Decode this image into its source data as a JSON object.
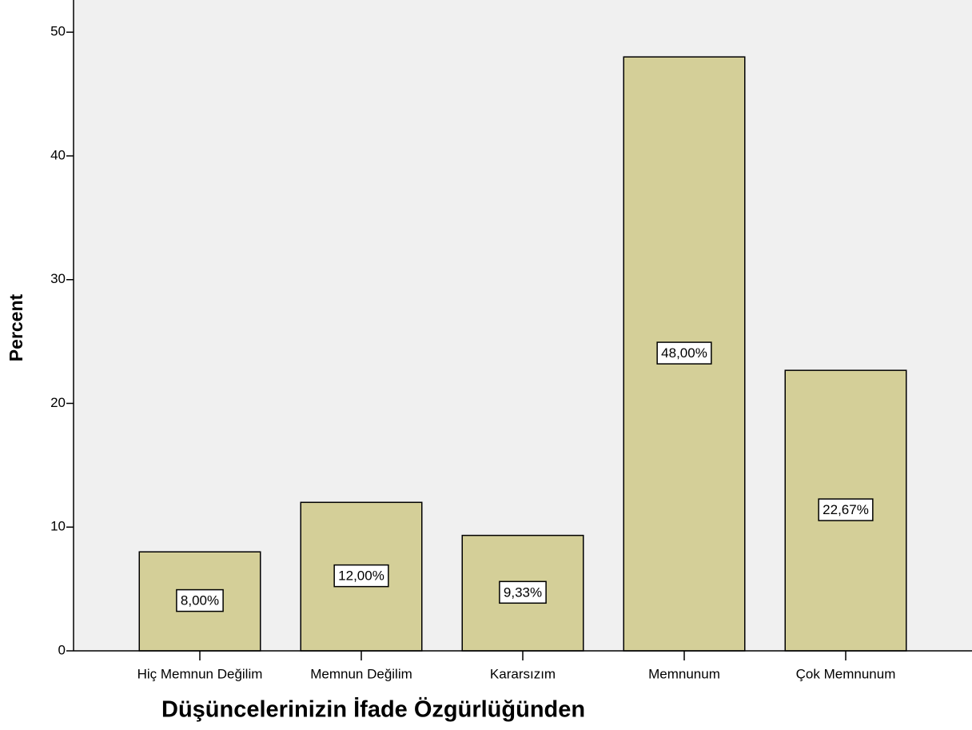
{
  "chart_data": {
    "type": "bar",
    "x_label": "Düşüncelerinizin İfade Özgürlüğünden",
    "y_label": "Percent",
    "categories": [
      "Hiç Memnun Değilim",
      "Memnun Değilim",
      "Kararsızım",
      "Memnunum",
      "Çok Memnunum"
    ],
    "values": [
      8,
      12,
      9.33,
      48,
      22.67
    ],
    "value_labels": [
      "8,00%",
      "12,00%",
      "9,33%",
      "48,00%",
      "22,67%"
    ],
    "color": "#d4cf98",
    "ylim": [
      0,
      52.6
    ],
    "yticks": [
      0,
      10,
      20,
      30,
      40,
      50
    ],
    "grid": false
  }
}
